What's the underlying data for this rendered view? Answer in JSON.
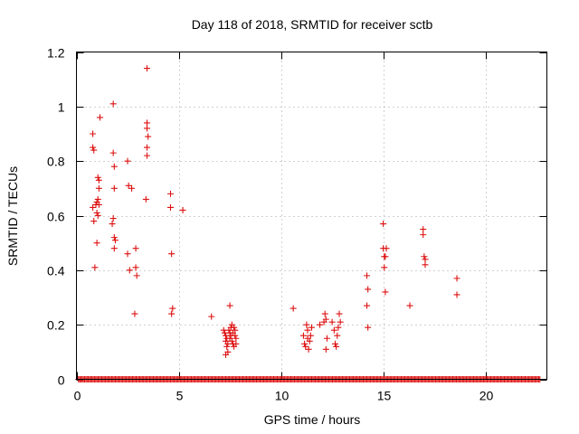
{
  "chart_data": {
    "type": "scatter",
    "title": "Day 118 of 2018, SRMTID for receiver sctb",
    "xlabel": "GPS time / hours",
    "ylabel": "SRMTID / TECUs",
    "xlim": [
      0,
      23
    ],
    "ylim": [
      0,
      1.2
    ],
    "xticks": [
      0,
      5,
      10,
      15,
      20
    ],
    "yticks": [
      0,
      0.2,
      0.4,
      0.6,
      0.8,
      1,
      1.2
    ],
    "xtick_labels": [
      "0",
      "5",
      "10",
      "15",
      "20"
    ],
    "ytick_labels": [
      "0",
      "0.2",
      "0.4",
      "0.6",
      "0.8",
      "1",
      "1.2"
    ],
    "grid": true,
    "marker": "+",
    "color": "#dd1111",
    "zero_baseline_x_range": [
      0.1,
      22.7
    ],
    "series": [
      {
        "name": "SRMTID",
        "points": [
          [
            0.8,
            0.9
          ],
          [
            0.8,
            0.85
          ],
          [
            0.85,
            0.84
          ],
          [
            0.8,
            0.63
          ],
          [
            0.85,
            0.58
          ],
          [
            0.9,
            0.41
          ],
          [
            1.0,
            0.65
          ],
          [
            1.05,
            0.66
          ],
          [
            0.95,
            0.64
          ],
          [
            1.0,
            0.61
          ],
          [
            1.05,
            0.6
          ],
          [
            1.1,
            0.64
          ],
          [
            1.05,
            0.74
          ],
          [
            1.1,
            0.73
          ],
          [
            1.1,
            0.7
          ],
          [
            1.0,
            0.5
          ],
          [
            1.15,
            0.96
          ],
          [
            1.8,
            1.01
          ],
          [
            1.8,
            0.83
          ],
          [
            1.85,
            0.78
          ],
          [
            1.85,
            0.7
          ],
          [
            1.8,
            0.59
          ],
          [
            1.75,
            0.57
          ],
          [
            1.85,
            0.52
          ],
          [
            1.9,
            0.51
          ],
          [
            1.85,
            0.48
          ],
          [
            2.5,
            0.8
          ],
          [
            2.55,
            0.71
          ],
          [
            2.7,
            0.7
          ],
          [
            2.5,
            0.46
          ],
          [
            2.6,
            0.4
          ],
          [
            2.9,
            0.48
          ],
          [
            2.9,
            0.41
          ],
          [
            2.95,
            0.38
          ],
          [
            2.85,
            0.24
          ],
          [
            3.45,
            1.14
          ],
          [
            3.45,
            0.94
          ],
          [
            3.45,
            0.92
          ],
          [
            3.5,
            0.89
          ],
          [
            3.45,
            0.85
          ],
          [
            3.45,
            0.82
          ],
          [
            3.4,
            0.66
          ],
          [
            4.6,
            0.68
          ],
          [
            4.6,
            0.63
          ],
          [
            4.65,
            0.46
          ],
          [
            4.7,
            0.26
          ],
          [
            4.65,
            0.24
          ],
          [
            5.2,
            0.62
          ],
          [
            6.6,
            0.23
          ],
          [
            7.5,
            0.27
          ],
          [
            7.2,
            0.18
          ],
          [
            7.25,
            0.17
          ],
          [
            7.3,
            0.16
          ],
          [
            7.35,
            0.15
          ],
          [
            7.3,
            0.14
          ],
          [
            7.4,
            0.13
          ],
          [
            7.45,
            0.18
          ],
          [
            7.5,
            0.17
          ],
          [
            7.55,
            0.16
          ],
          [
            7.5,
            0.15
          ],
          [
            7.6,
            0.14
          ],
          [
            7.65,
            0.13
          ],
          [
            7.7,
            0.12
          ],
          [
            7.6,
            0.2
          ],
          [
            7.7,
            0.19
          ],
          [
            7.75,
            0.18
          ],
          [
            7.75,
            0.16
          ],
          [
            7.8,
            0.15
          ],
          [
            7.8,
            0.13
          ],
          [
            7.35,
            0.12
          ],
          [
            7.3,
            0.09
          ],
          [
            7.4,
            0.1
          ],
          [
            7.55,
            0.19
          ],
          [
            7.65,
            0.17
          ],
          [
            10.6,
            0.26
          ],
          [
            11.1,
            0.16
          ],
          [
            11.15,
            0.13
          ],
          [
            11.2,
            0.12
          ],
          [
            11.25,
            0.2
          ],
          [
            11.3,
            0.18
          ],
          [
            11.3,
            0.15
          ],
          [
            11.35,
            0.11
          ],
          [
            11.4,
            0.14
          ],
          [
            11.45,
            0.16
          ],
          [
            11.5,
            0.19
          ],
          [
            11.9,
            0.2
          ],
          [
            12.1,
            0.21
          ],
          [
            12.15,
            0.24
          ],
          [
            12.2,
            0.22
          ],
          [
            12.25,
            0.15
          ],
          [
            12.2,
            0.11
          ],
          [
            12.5,
            0.21
          ],
          [
            12.6,
            0.18
          ],
          [
            12.65,
            0.13
          ],
          [
            12.7,
            0.12
          ],
          [
            12.75,
            0.16
          ],
          [
            12.8,
            0.19
          ],
          [
            12.85,
            0.24
          ],
          [
            12.9,
            0.21
          ],
          [
            14.2,
            0.38
          ],
          [
            14.25,
            0.33
          ],
          [
            14.2,
            0.27
          ],
          [
            14.25,
            0.19
          ],
          [
            15.0,
            0.57
          ],
          [
            15.0,
            0.48
          ],
          [
            15.05,
            0.45
          ],
          [
            15.1,
            0.45
          ],
          [
            15.05,
            0.41
          ],
          [
            15.15,
            0.48
          ],
          [
            15.1,
            0.32
          ],
          [
            16.3,
            0.27
          ],
          [
            16.95,
            0.55
          ],
          [
            16.95,
            0.53
          ],
          [
            17.0,
            0.45
          ],
          [
            17.05,
            0.44
          ],
          [
            17.05,
            0.42
          ],
          [
            18.6,
            0.37
          ],
          [
            18.6,
            0.31
          ]
        ]
      }
    ]
  }
}
